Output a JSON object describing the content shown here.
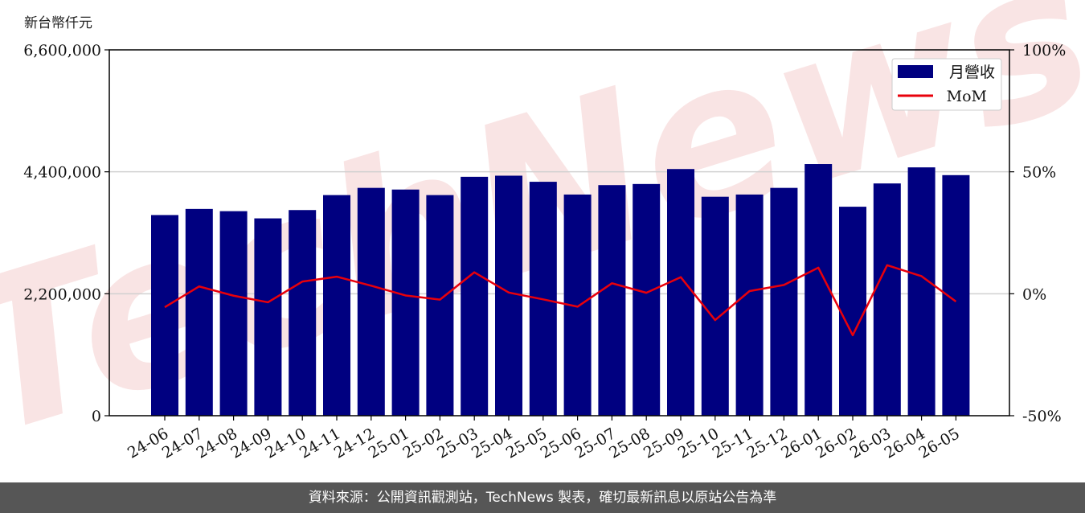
{
  "chart_data": {
    "type": "bar",
    "unit_label": "新台幣仟元",
    "categories": [
      "24-06",
      "24-07",
      "24-08",
      "24-09",
      "24-10",
      "24-11",
      "24-12",
      "25-01",
      "25-02",
      "25-03",
      "25-04",
      "25-05",
      "25-06",
      "25-07",
      "25-08",
      "25-09",
      "25-10",
      "25-11",
      "25-12",
      "26-01",
      "26-02",
      "26-03",
      "26-04",
      "26-05"
    ],
    "series": [
      {
        "name": "月營收",
        "axis": "left",
        "color": "#000080",
        "values": [
          3620000,
          3730000,
          3690000,
          3560000,
          3710000,
          3980000,
          4110000,
          4080000,
          3980000,
          4310000,
          4330000,
          4220000,
          3990000,
          4160000,
          4180000,
          4450000,
          3950000,
          3990000,
          4110000,
          4540000,
          3770000,
          4190000,
          4480000,
          4340000
        ]
      },
      {
        "name": "MoM",
        "axis": "right",
        "color": "#e8000b",
        "values": [
          -5.5,
          3.0,
          -0.8,
          -3.5,
          5.0,
          7.0,
          3.3,
          -0.7,
          -2.4,
          8.8,
          0.5,
          -2.3,
          -5.3,
          4.3,
          0.4,
          6.8,
          -10.8,
          1.1,
          3.6,
          10.7,
          -17.0,
          11.7,
          7.2,
          -3.2
        ]
      }
    ],
    "y_left": {
      "min": 0,
      "max": 6600000,
      "ticks": [
        "0",
        "2,200,000",
        "4,400,000",
        "6,600,000"
      ],
      "tick_values": [
        0,
        2200000,
        4400000,
        6600000
      ]
    },
    "y_right": {
      "min": -50,
      "max": 100,
      "ticks": [
        "-50%",
        "0%",
        "50%",
        "100%"
      ],
      "tick_values": [
        -50,
        0,
        50,
        100
      ]
    },
    "grid": "horizontal",
    "legend_position": "top-right",
    "watermark": "TechNews"
  },
  "footer": {
    "source_text": "資料來源：公開資訊觀測站，TechNews 製表，確切最新訊息以原站公告為準"
  }
}
